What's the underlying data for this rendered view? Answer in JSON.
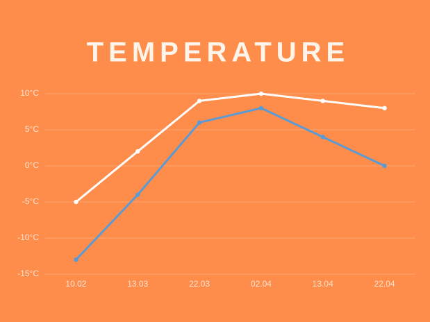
{
  "chart_data": {
    "type": "line",
    "title": "TEMPERATURE",
    "categories": [
      "10.02",
      "13.03",
      "22.03",
      "02.04",
      "13.04",
      "22.04"
    ],
    "series": [
      {
        "color": "#ffffff",
        "values": [
          -5,
          2,
          9,
          10,
          9,
          8
        ]
      },
      {
        "color": "#5b9bd5",
        "values": [
          -13,
          -4,
          6,
          8,
          4,
          0
        ]
      }
    ],
    "ylim": [
      -15,
      10
    ],
    "yticks": [
      {
        "value": -15,
        "label": "-15°C"
      },
      {
        "value": -10,
        "label": "-10°C"
      },
      {
        "value": -5,
        "label": "-5°C"
      },
      {
        "value": 0,
        "label": "0°C"
      },
      {
        "value": 5,
        "label": "5°C"
      },
      {
        "value": 10,
        "label": "10°C"
      }
    ],
    "grid": true
  }
}
